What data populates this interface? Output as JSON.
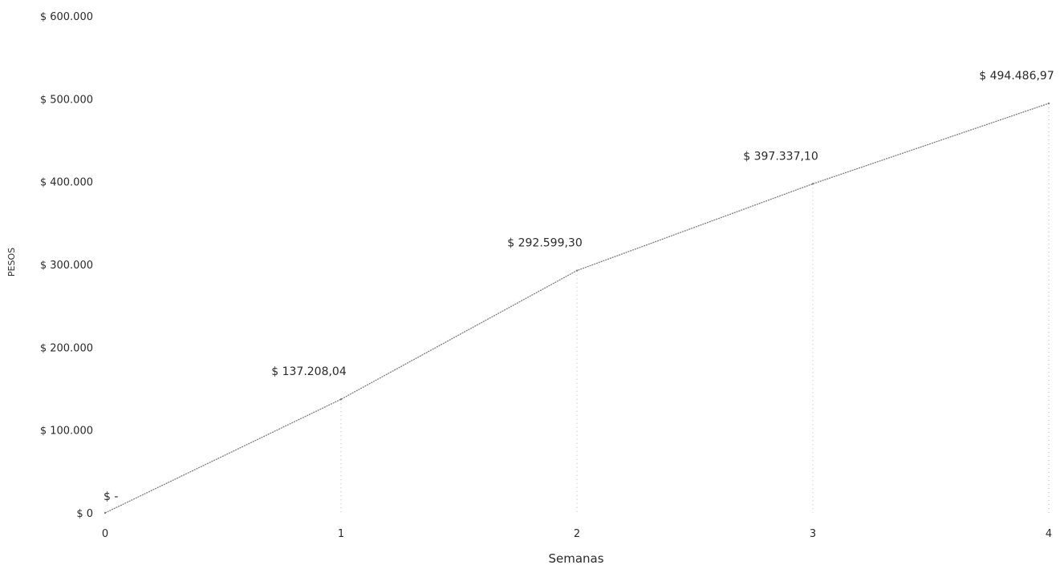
{
  "chart_data": {
    "type": "line",
    "xlabel": "Semanas",
    "ylabel": "PESOS",
    "x": [
      0,
      1,
      2,
      3,
      4
    ],
    "x_tick_labels": [
      "0",
      "1",
      "2",
      "3",
      "4"
    ],
    "series": [
      {
        "values": [
          0,
          137208.04,
          292599.3,
          397337.1,
          494486.97
        ],
        "data_labels": [
          "$ -",
          "$ 137.208,04",
          "$ 292.599,30",
          "$ 397.337,10",
          "$ 494.486,97"
        ],
        "color": "#7c7c7c"
      }
    ],
    "ylim": [
      0,
      600000
    ],
    "y_ticks": [
      0,
      100000,
      200000,
      300000,
      400000,
      500000,
      600000
    ],
    "y_tick_labels": [
      "$ 0",
      "$ 100.000",
      "$ 200.000",
      "$ 300.000",
      "$ 400.000",
      "$ 500.000",
      "$ 600.000"
    ],
    "drop_lines": true,
    "grid": false,
    "legend": "none"
  }
}
